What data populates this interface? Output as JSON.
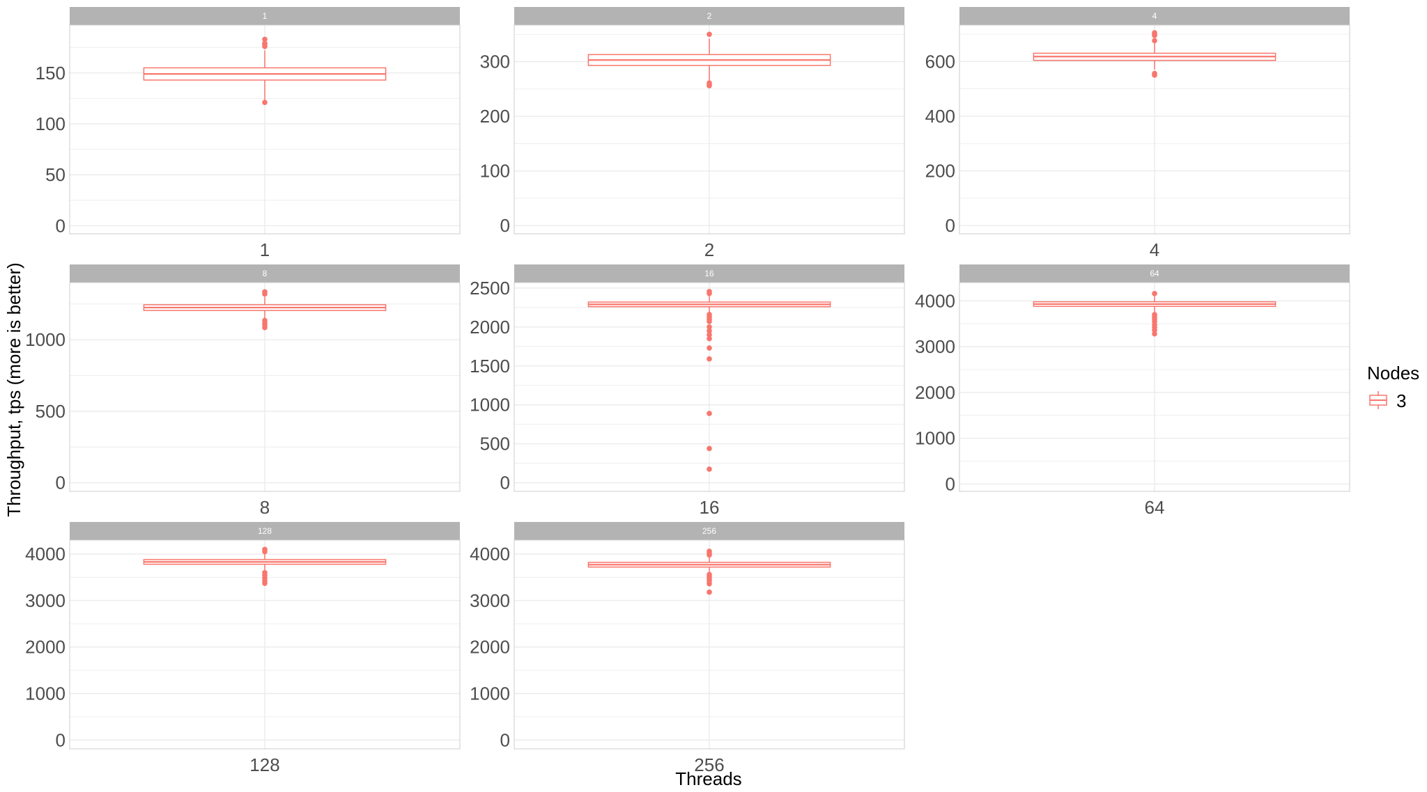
{
  "chart_data": {
    "type": "boxplot",
    "facet_by": "Threads",
    "xlabel": "Threads",
    "ylabel": "Throughput, tps (more is better)",
    "legend": {
      "title": "Nodes",
      "entries": [
        "3"
      ],
      "placement": "right"
    },
    "colors": {
      "series": "#F8766D",
      "strip": "#B3B3B3",
      "grid": "#EBEBEB",
      "panel_border": "#CCCCCC"
    },
    "grid": true,
    "panels": [
      {
        "strip": "1",
        "x_tick": "1",
        "ylim": [
          -8,
          197
        ],
        "y_ticks": [
          0,
          50,
          100,
          150
        ],
        "y_tick_labels": [
          "0",
          "50",
          "100",
          "150"
        ],
        "box": {
          "min": 121,
          "q1": 143,
          "median": 149,
          "q3": 155,
          "max": 172
        },
        "outliers": [
          121,
          176,
          178,
          179,
          183
        ]
      },
      {
        "strip": "2",
        "x_tick": "2",
        "ylim": [
          -15,
          367
        ],
        "y_ticks": [
          0,
          100,
          200,
          300
        ],
        "y_tick_labels": [
          "0",
          "100",
          "200",
          "300"
        ],
        "box": {
          "min": 265,
          "q1": 293,
          "median": 303,
          "q3": 313,
          "max": 342
        },
        "outliers": [
          256,
          258,
          261,
          350
        ]
      },
      {
        "strip": "4",
        "x_tick": "4",
        "ylim": [
          -30,
          733
        ],
        "y_ticks": [
          0,
          200,
          400,
          600
        ],
        "y_tick_labels": [
          "0",
          "200",
          "400",
          "600"
        ],
        "box": {
          "min": 570,
          "q1": 604,
          "median": 618,
          "q3": 630,
          "max": 668
        },
        "outliers": [
          550,
          556,
          676,
          695,
          700,
          705
        ]
      },
      {
        "strip": "8",
        "x_tick": "8",
        "ylim": [
          -60,
          1400
        ],
        "y_ticks": [
          0,
          500,
          1000
        ],
        "y_tick_labels": [
          "0",
          "500",
          "1000"
        ],
        "box": {
          "min": 1150,
          "q1": 1205,
          "median": 1225,
          "q3": 1245,
          "max": 1300
        },
        "outliers": [
          1085,
          1100,
          1115,
          1135,
          1320,
          1335
        ]
      },
      {
        "strip": "16",
        "x_tick": "16",
        "ylim": [
          -110,
          2570
        ],
        "y_ticks": [
          0,
          500,
          1000,
          1500,
          2000,
          2500
        ],
        "y_tick_labels": [
          "0",
          "500",
          "1000",
          "1500",
          "2000",
          "2500"
        ],
        "box": {
          "min": 2180,
          "q1": 2260,
          "median": 2290,
          "q3": 2320,
          "max": 2400
        },
        "outliers": [
          175,
          440,
          890,
          1590,
          1730,
          1850,
          1900,
          1950,
          2000,
          2070,
          2100,
          2130,
          2160,
          2430,
          2455
        ]
      },
      {
        "strip": "64",
        "x_tick": "64",
        "ylim": [
          -160,
          4400
        ],
        "y_ticks": [
          0,
          1000,
          2000,
          3000,
          4000
        ],
        "y_tick_labels": [
          "0",
          "1000",
          "2000",
          "3000",
          "4000"
        ],
        "box": {
          "min": 3750,
          "q1": 3880,
          "median": 3930,
          "q3": 3980,
          "max": 4100
        },
        "outliers": [
          3280,
          3360,
          3420,
          3480,
          3550,
          3600,
          3650,
          3700,
          4160
        ]
      },
      {
        "strip": "128",
        "x_tick": "128",
        "ylim": [
          -190,
          4300
        ],
        "y_ticks": [
          0,
          1000,
          2000,
          3000,
          4000
        ],
        "y_tick_labels": [
          "0",
          "1000",
          "2000",
          "3000",
          "4000"
        ],
        "box": {
          "min": 3660,
          "q1": 3780,
          "median": 3830,
          "q3": 3880,
          "max": 4000
        },
        "outliers": [
          3370,
          3420,
          3480,
          3540,
          3600,
          4050,
          4100
        ]
      },
      {
        "strip": "256",
        "x_tick": "256",
        "ylim": [
          -190,
          4300
        ],
        "y_ticks": [
          0,
          1000,
          2000,
          3000,
          4000
        ],
        "y_tick_labels": [
          "0",
          "1000",
          "2000",
          "3000",
          "4000"
        ],
        "box": {
          "min": 3620,
          "q1": 3720,
          "median": 3770,
          "q3": 3820,
          "max": 3950
        },
        "outliers": [
          3180,
          3360,
          3420,
          3470,
          3520,
          3560,
          3980,
          4020,
          4060
        ]
      }
    ]
  }
}
